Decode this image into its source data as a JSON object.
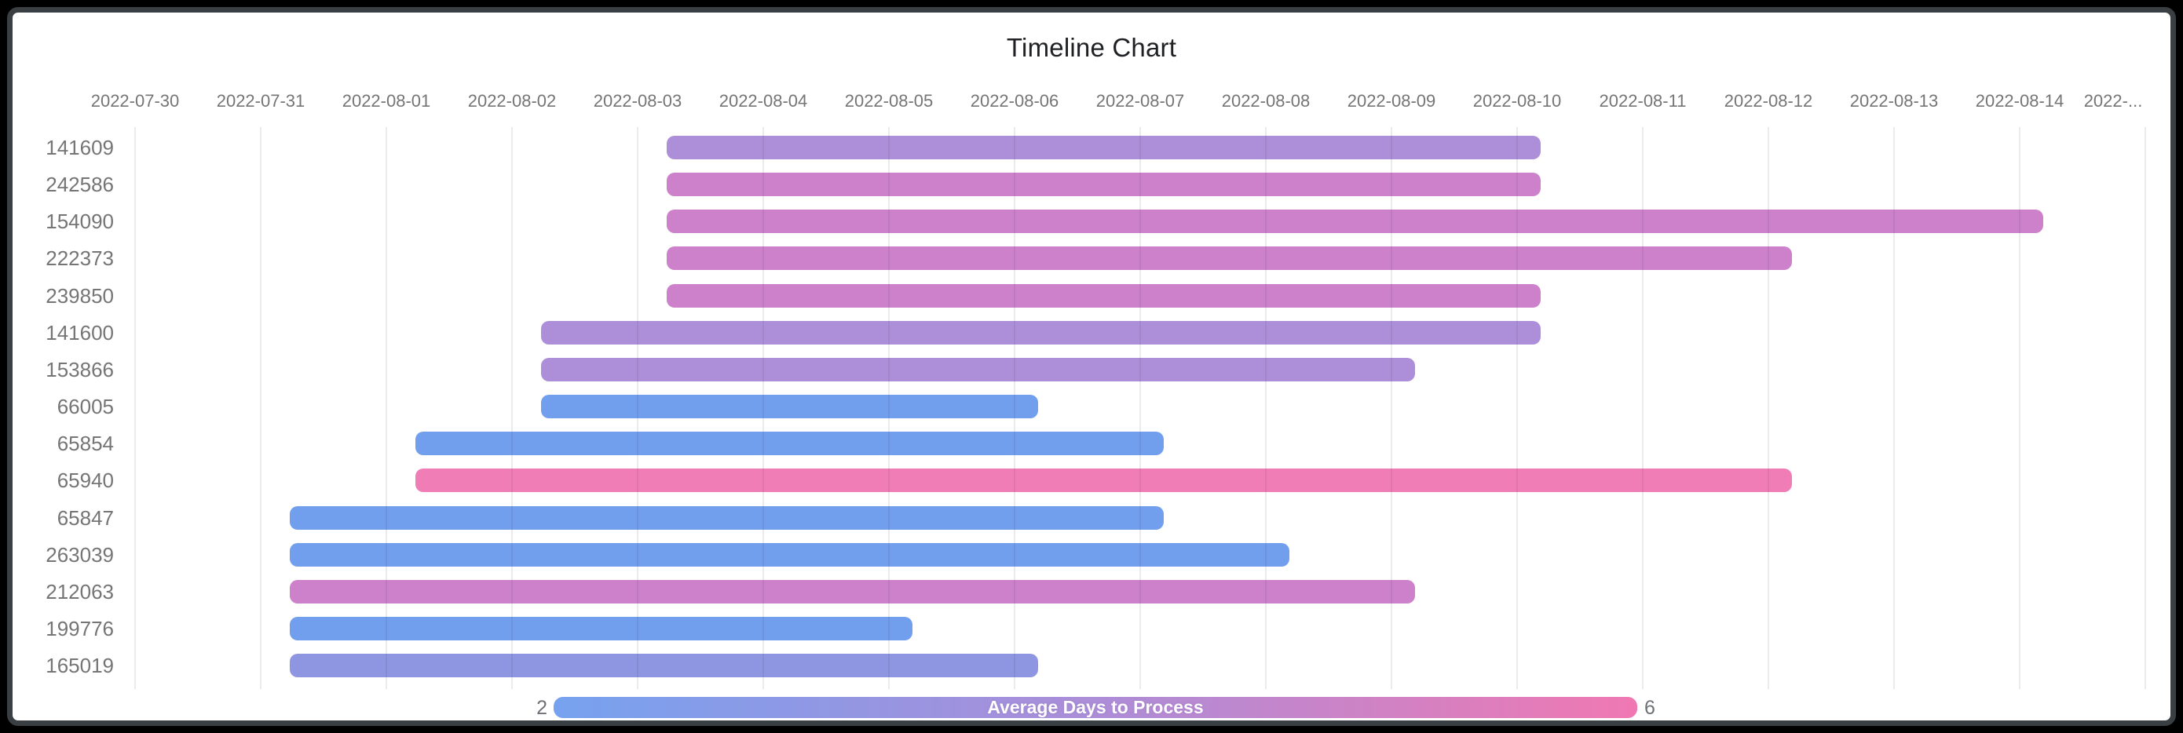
{
  "title": "Timeline Chart",
  "x_axis": {
    "tick_labels": [
      "2022-07-30",
      "2022-07-31",
      "2022-08-01",
      "2022-08-02",
      "2022-08-03",
      "2022-08-04",
      "2022-08-05",
      "2022-08-06",
      "2022-08-07",
      "2022-08-08",
      "2022-08-09",
      "2022-08-10",
      "2022-08-11",
      "2022-08-12",
      "2022-08-13",
      "2022-08-14",
      "2022-..."
    ]
  },
  "legend": {
    "min_label": "2",
    "max_label": "6",
    "title": "Average Days to Process",
    "gradient_colors": [
      "#76a2ef",
      "#ac8dd8",
      "#f078b2"
    ]
  },
  "chart_data": {
    "type": "timeline",
    "title": "Timeline Chart",
    "x_range": [
      "2022-07-30",
      "2022-08-15"
    ],
    "x_tick_interval_days": 1,
    "grid": true,
    "color_scale": {
      "label": "Average Days to Process",
      "min": 2,
      "max": 6,
      "min_color": "#719fed",
      "max_color": "#f07db6",
      "legend_position": "bottom"
    },
    "rows": [
      {
        "id": "141609",
        "start": "2022-08-03 05:30",
        "end": "2022-08-10 04:30",
        "avg_days_to_process": 4,
        "color": "#ad8fd9"
      },
      {
        "id": "242586",
        "start": "2022-08-03 05:30",
        "end": "2022-08-10 04:30",
        "avg_days_to_process": 5,
        "color": "#cd81cb"
      },
      {
        "id": "154090",
        "start": "2022-08-03 05:30",
        "end": "2022-08-14 04:30",
        "avg_days_to_process": 5,
        "color": "#cd81cb"
      },
      {
        "id": "222373",
        "start": "2022-08-03 05:30",
        "end": "2022-08-12 04:30",
        "avg_days_to_process": 5,
        "color": "#cd81cb"
      },
      {
        "id": "239850",
        "start": "2022-08-03 05:30",
        "end": "2022-08-10 04:30",
        "avg_days_to_process": 5,
        "color": "#cd81cb"
      },
      {
        "id": "141600",
        "start": "2022-08-02 05:30",
        "end": "2022-08-10 04:30",
        "avg_days_to_process": 4,
        "color": "#ad8fd9"
      },
      {
        "id": "153866",
        "start": "2022-08-02 05:30",
        "end": "2022-08-09 04:30",
        "avg_days_to_process": 4,
        "color": "#ad8fd9"
      },
      {
        "id": "66005",
        "start": "2022-08-02 05:30",
        "end": "2022-08-06 04:30",
        "avg_days_to_process": 2,
        "color": "#719fed"
      },
      {
        "id": "65854",
        "start": "2022-08-01 05:30",
        "end": "2022-08-07 04:30",
        "avg_days_to_process": 2,
        "color": "#719fed"
      },
      {
        "id": "65940",
        "start": "2022-08-01 05:30",
        "end": "2022-08-12 04:30",
        "avg_days_to_process": 6,
        "color": "#f07db6"
      },
      {
        "id": "65847",
        "start": "2022-07-31 05:30",
        "end": "2022-08-07 04:30",
        "avg_days_to_process": 2,
        "color": "#719fed"
      },
      {
        "id": "263039",
        "start": "2022-07-31 05:30",
        "end": "2022-08-08 04:30",
        "avg_days_to_process": 2,
        "color": "#719fed"
      },
      {
        "id": "212063",
        "start": "2022-07-31 05:30",
        "end": "2022-08-09 04:30",
        "avg_days_to_process": 5,
        "color": "#cd81cb"
      },
      {
        "id": "199776",
        "start": "2022-07-31 05:30",
        "end": "2022-08-05 04:30",
        "avg_days_to_process": 2,
        "color": "#719fed"
      },
      {
        "id": "165019",
        "start": "2022-07-31 05:30",
        "end": "2022-08-06 04:30",
        "avg_days_to_process": 3,
        "color": "#8f96e1"
      }
    ]
  }
}
